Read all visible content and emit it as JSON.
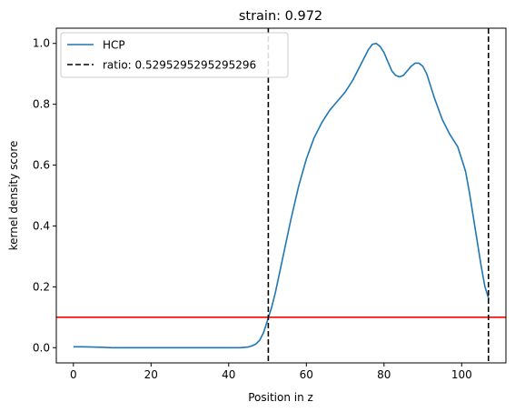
{
  "chart_data": {
    "type": "line",
    "title": "strain: 0.972",
    "xlabel": "Position in z",
    "ylabel": "kernel density score",
    "xlim": [
      -4.4,
      111.4
    ],
    "ylim": [
      -0.05,
      1.05
    ],
    "xticks": [
      0,
      20,
      40,
      60,
      80,
      100
    ],
    "yticks": [
      0.0,
      0.2,
      0.4,
      0.6,
      0.8,
      1.0
    ],
    "ytick_labels": [
      "0.0",
      "0.2",
      "0.4",
      "0.6",
      "0.8",
      "1.0"
    ],
    "grid": false,
    "legend_position": "top-left",
    "series": [
      {
        "name": "HCP",
        "color": "#1f77b4",
        "style": "solid",
        "x": [
          0,
          2,
          5,
          8,
          10,
          15,
          20,
          25,
          30,
          35,
          40,
          43,
          45,
          46,
          47,
          48,
          49,
          50,
          51,
          52,
          54,
          56,
          58,
          60,
          62,
          64,
          66,
          68,
          70,
          72,
          74,
          76,
          77,
          78,
          79,
          80,
          81,
          82,
          83,
          84,
          85,
          86,
          87,
          88,
          89,
          90,
          91,
          92,
          93,
          95,
          97,
          99,
          101,
          102,
          103,
          104,
          105,
          106,
          107
        ],
        "y": [
          0.003,
          0.003,
          0.002,
          0.001,
          0.0,
          0.0,
          0.0,
          0.0,
          0.0,
          0.0,
          0.0,
          0.0,
          0.002,
          0.006,
          0.012,
          0.025,
          0.05,
          0.09,
          0.13,
          0.18,
          0.3,
          0.42,
          0.53,
          0.62,
          0.69,
          0.74,
          0.78,
          0.81,
          0.84,
          0.88,
          0.93,
          0.98,
          0.997,
          1.0,
          0.99,
          0.97,
          0.94,
          0.91,
          0.895,
          0.89,
          0.895,
          0.91,
          0.925,
          0.935,
          0.935,
          0.925,
          0.9,
          0.86,
          0.82,
          0.75,
          0.7,
          0.66,
          0.58,
          0.51,
          0.43,
          0.35,
          0.27,
          0.2,
          0.16
        ]
      }
    ],
    "vlines": [
      {
        "label": "ratio: 0.5295295295295296",
        "x": 50.2,
        "color": "#000000",
        "style": "dashed"
      },
      {
        "label": "",
        "x": 106.9,
        "color": "#000000",
        "style": "dashed"
      }
    ],
    "hlines": [
      {
        "label": "",
        "y": 0.1,
        "color": "#ff0000",
        "style": "solid"
      }
    ],
    "legend": [
      {
        "label": "HCP",
        "color": "#1f77b4",
        "style": "solid"
      },
      {
        "label": "ratio: 0.5295295295295296",
        "color": "#000000",
        "style": "dashed"
      }
    ]
  }
}
